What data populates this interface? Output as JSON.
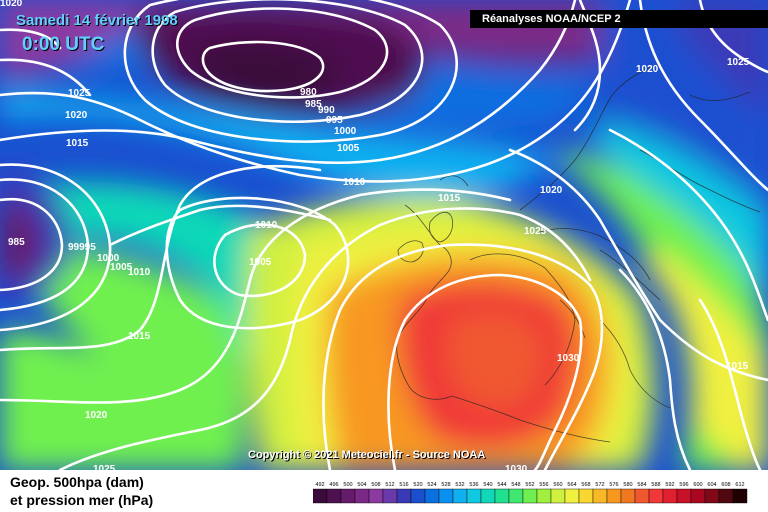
{
  "header": {
    "date": "Samedi 14 février 1998",
    "time": "0:00 UTC",
    "source": "Réanalyses NOAA/NCEP 2"
  },
  "copyright": "Copyright © 2021 Meteociel.fr - Source NOAA",
  "legend": {
    "line1": "Geop. 500hpa (dam)",
    "line2": "et pression mer (hPa)",
    "scale_values": [
      "492",
      "496",
      "500",
      "504",
      "508",
      "512",
      "516",
      "520",
      "524",
      "528",
      "532",
      "536",
      "540",
      "544",
      "548",
      "552",
      "556",
      "560",
      "564",
      "568",
      "572",
      "576",
      "580",
      "584",
      "588",
      "592",
      "596",
      "600",
      "604",
      "608",
      "612"
    ],
    "scale_colors": [
      "#3a0a3a",
      "#4d1150",
      "#661a6a",
      "#7a2a86",
      "#8a3aa0",
      "#6a3aa8",
      "#3a3ab8",
      "#1a50d0",
      "#0a70e0",
      "#0a90f0",
      "#10b0f0",
      "#10c8e0",
      "#10d8b8",
      "#20e090",
      "#40e870",
      "#70f050",
      "#a0f040",
      "#d0f040",
      "#f0f040",
      "#f8d830",
      "#f8b828",
      "#f89820",
      "#f07820",
      "#f05830",
      "#f03838",
      "#e02030",
      "#c81028",
      "#a80820",
      "#800818",
      "#500810",
      "#200000"
    ]
  },
  "pressure_labels": {
    "top_left": "1020",
    "l1025": "1025",
    "l1020": "1020",
    "l1015": "1015",
    "low_980": "980",
    "low_985": "985",
    "low_990": "990",
    "low_995": "995",
    "low_1000": "1000",
    "low_1005": "1005",
    "mid_1010": "1010",
    "nsea_1015": "1015",
    "scand_1020": "1020",
    "ne_1020": "1020",
    "ne_1025": "1025",
    "west_985": "985",
    "west_99995": "99995",
    "west_1000": "1000",
    "west_1005": "1005",
    "west_1010": "1010",
    "atl_1010": "1010",
    "atl_1005": "1005",
    "atl_1015": "1015",
    "sw_1020": "1020",
    "s_1025": "1025",
    "eur_1025": "1025",
    "med_1030": "1030",
    "bottom_1030": "1030",
    "east_1015": "1015"
  }
}
